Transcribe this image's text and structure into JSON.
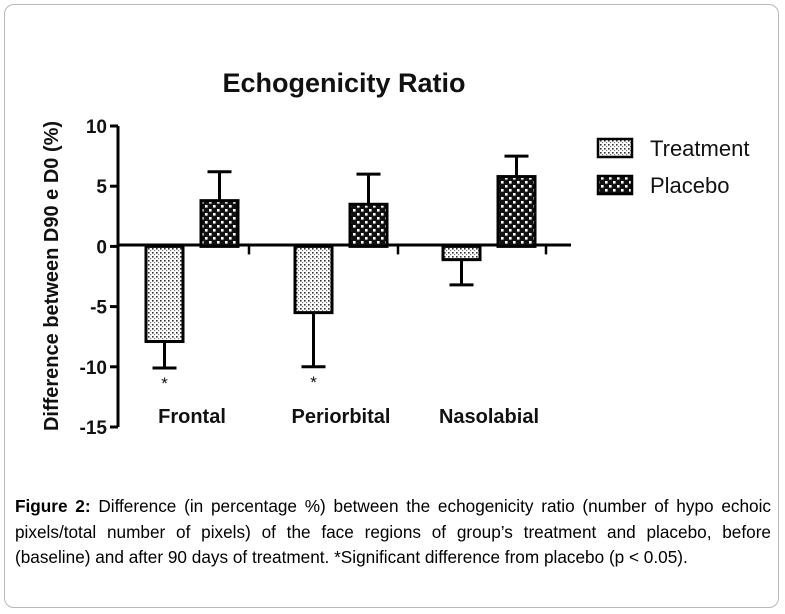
{
  "chart_data": {
    "type": "bar",
    "title": "Echogenicity Ratio",
    "ylabel": "Difference between D90 e D0 (%)",
    "xlabel": "",
    "ylim": [
      -15,
      10
    ],
    "yticks": [
      10,
      5,
      0,
      -5,
      -10,
      -15
    ],
    "ytick_labels": [
      "10",
      "5",
      "0",
      "-5",
      "-10",
      "-15"
    ],
    "categories": [
      "Frontal",
      "Periorbital",
      "Nasolabial"
    ],
    "series": [
      {
        "name": "Treatment",
        "pattern": "dots",
        "values": [
          -7.9,
          -5.5,
          -1.1
        ],
        "error": [
          2.2,
          4.5,
          2.1
        ],
        "significance": [
          "*",
          "*",
          ""
        ]
      },
      {
        "name": "Placebo",
        "pattern": "checker",
        "values": [
          3.8,
          3.5,
          5.8
        ],
        "error": [
          2.4,
          2.5,
          1.7
        ],
        "significance": [
          "",
          "",
          ""
        ]
      }
    ],
    "legend_position": "top-right",
    "grid": false
  },
  "caption": {
    "label": "Figure 2:",
    "text": " Difference (in percentage %) between the echogenicity ratio (number of hypo echoic pixels/total number of pixels) of the face regions of group’s treatment and placebo, before (baseline) and after 90 days of treatment. *Significant difference from placebo (p < 0.05)."
  }
}
